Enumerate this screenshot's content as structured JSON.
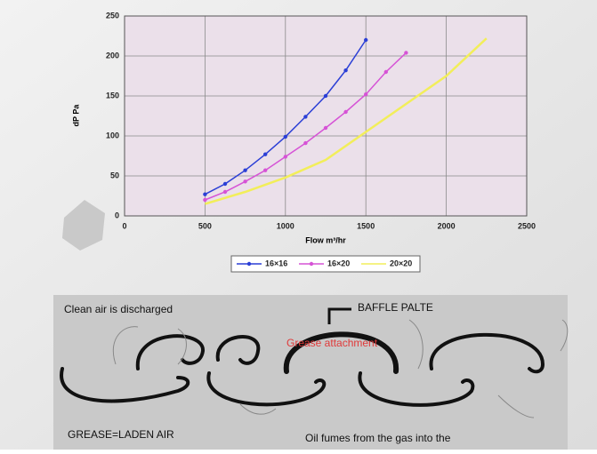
{
  "chart_data": {
    "type": "line",
    "y_label": "dP Pa",
    "x_label": "Flow m³/hr",
    "xlim": [
      0,
      2500
    ],
    "xticks": [
      0,
      500,
      1000,
      1500,
      2000,
      2500
    ],
    "ylim": [
      0,
      250
    ],
    "yticks": [
      0,
      50,
      100,
      150,
      200,
      250
    ],
    "grid": true,
    "legend": "bottom",
    "series": [
      {
        "name": "16×16",
        "color": "#2b3fd6",
        "markers": true,
        "x": [
          500,
          625,
          750,
          875,
          1000,
          1125,
          1250,
          1375,
          1500
        ],
        "values": [
          27,
          40,
          57,
          77,
          99,
          124,
          150,
          182,
          220
        ]
      },
      {
        "name": "16×20",
        "color": "#d653d6",
        "markers": true,
        "x": [
          500,
          625,
          750,
          875,
          1000,
          1125,
          1250,
          1375,
          1500,
          1625,
          1750
        ],
        "values": [
          20,
          30,
          43,
          57,
          74,
          91,
          110,
          130,
          152,
          180,
          204
        ]
      },
      {
        "name": "20×20",
        "color": "#f2ee5a",
        "markers": false,
        "x": [
          500,
          750,
          1000,
          1250,
          1500,
          1750,
          2000,
          2250
        ],
        "values": [
          15,
          30,
          48,
          70,
          105,
          140,
          175,
          222
        ]
      }
    ]
  },
  "diagram": {
    "labels": [
      "Clean air is discharged",
      "BAFFLE PALTE",
      "Grease attachment",
      "GREASE=LADEN AIR",
      "Oil fumes from the gas into the"
    ]
  }
}
